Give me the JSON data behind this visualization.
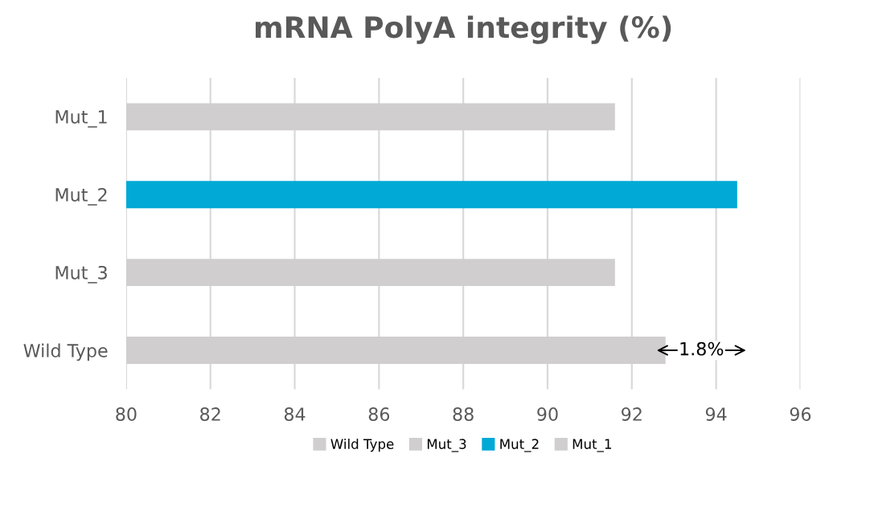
{
  "chart_data": {
    "type": "bar",
    "orientation": "horizontal",
    "title": "mRNA PolyA integrity (%)",
    "categories": [
      "Mut_1",
      "Mut_2",
      "Mut_3",
      "Wild Type"
    ],
    "series": [
      {
        "name": "Wild Type",
        "color": "#d0cece",
        "values": [
          null,
          null,
          null,
          92.8
        ]
      },
      {
        "name": "Mut_3",
        "color": "#d0cece",
        "values": [
          null,
          null,
          91.6,
          null
        ]
      },
      {
        "name": "Mut_2",
        "color": "#00a9d6",
        "values": [
          null,
          94.5,
          null,
          null
        ]
      },
      {
        "name": "Mut_1",
        "color": "#d0cece",
        "values": [
          91.6,
          null,
          null,
          null
        ]
      }
    ],
    "xlim": [
      80,
      96
    ],
    "xticks": [
      80,
      82,
      84,
      86,
      88,
      90,
      92,
      94,
      96
    ],
    "grid": "x",
    "legend": "bottom",
    "annotations": [
      {
        "text": "1.8%",
        "x": 93.65,
        "y": "Wild Type"
      }
    ]
  }
}
